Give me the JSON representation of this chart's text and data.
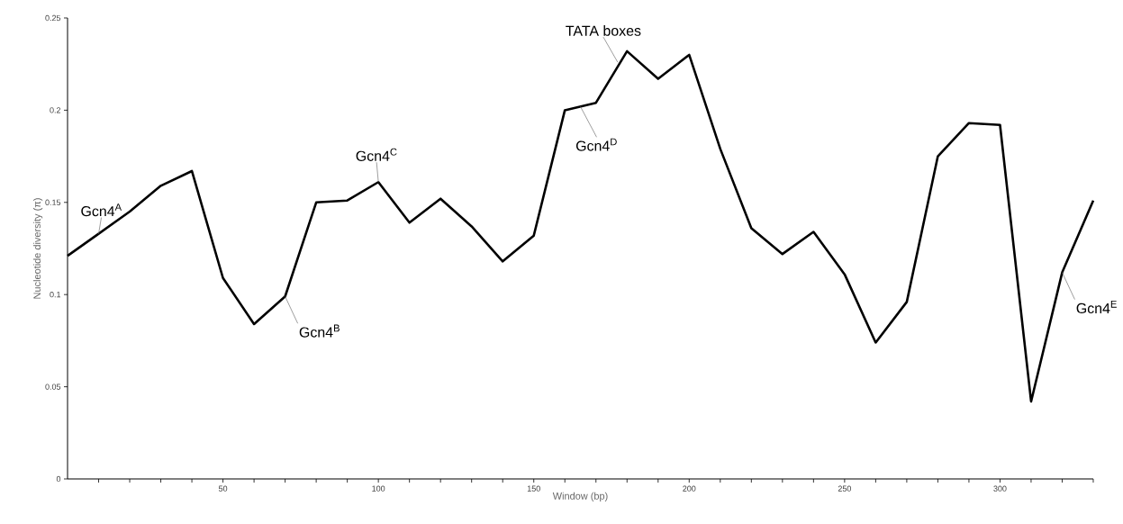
{
  "chart_data": {
    "type": "line",
    "xlabel": "Window (bp)",
    "ylabel": "Nucleotide diversity (π)",
    "x": [
      0,
      10,
      20,
      30,
      40,
      50,
      60,
      70,
      80,
      90,
      100,
      110,
      120,
      130,
      140,
      150,
      160,
      170,
      180,
      190,
      200,
      210,
      220,
      230,
      240,
      250,
      260,
      270,
      280,
      290,
      300,
      310,
      320,
      330
    ],
    "series": [
      {
        "color": "#000000",
        "values": [
          0.121,
          0.133,
          0.145,
          0.159,
          0.167,
          0.109,
          0.084,
          0.099,
          0.15,
          0.151,
          0.161,
          0.139,
          0.152,
          0.137,
          0.118,
          0.132,
          0.2,
          0.204,
          0.232,
          0.217,
          0.23,
          0.179,
          0.136,
          0.122,
          0.134,
          0.111,
          0.074,
          0.096,
          0.175,
          0.193,
          0.192,
          0.042,
          0.112,
          0.151
        ]
      }
    ],
    "xlim": [
      0,
      330
    ],
    "ylim": [
      0,
      0.25
    ],
    "xticks": [
      {
        "value": 10,
        "label": null
      },
      {
        "value": 20,
        "label": null
      },
      {
        "value": 30,
        "label": null
      },
      {
        "value": 40,
        "label": null
      },
      50,
      {
        "value": 60,
        "label": null
      },
      {
        "value": 70,
        "label": null
      },
      {
        "value": 80,
        "label": null
      },
      {
        "value": 90,
        "label": null
      },
      100,
      {
        "value": 110,
        "label": null
      },
      {
        "value": 120,
        "label": null
      },
      {
        "value": 130,
        "label": null
      },
      {
        "value": 140,
        "label": null
      },
      150,
      {
        "value": 160,
        "label": null
      },
      {
        "value": 170,
        "label": null
      },
      {
        "value": 180,
        "label": null
      },
      {
        "value": 190,
        "label": null
      },
      200,
      {
        "value": 210,
        "label": null
      },
      {
        "value": 220,
        "label": null
      },
      {
        "value": 230,
        "label": null
      },
      {
        "value": 240,
        "label": null
      },
      250,
      {
        "value": 260,
        "label": null
      },
      {
        "value": 270,
        "label": null
      },
      {
        "value": 280,
        "label": null
      },
      {
        "value": 290,
        "label": null
      },
      300,
      {
        "value": 310,
        "label": null
      },
      {
        "value": 320,
        "label": null
      },
      {
        "value": 330,
        "label": null
      }
    ],
    "yticks": [
      0,
      0.05,
      0.1,
      0.15,
      0.2,
      0.25
    ],
    "grid": false,
    "marker": "none",
    "line_style": "solid",
    "annotations": [
      {
        "text": "Gcn4$^{A}$",
        "x": 10,
        "y": 0.133
      },
      {
        "text": "Gcn4$^{B}$",
        "x": 70,
        "y": 0.099
      },
      {
        "text": "Gcn4$^{C}$",
        "x": 100,
        "y": 0.161
      },
      {
        "text": "Gcn4$^{D}$",
        "x": 165,
        "y": 0.202
      },
      {
        "text": "TATA boxes",
        "x": 177,
        "y": 0.226
      },
      {
        "text": "Gcn4$^{E}$",
        "x": 320,
        "y": 0.112
      }
    ]
  }
}
